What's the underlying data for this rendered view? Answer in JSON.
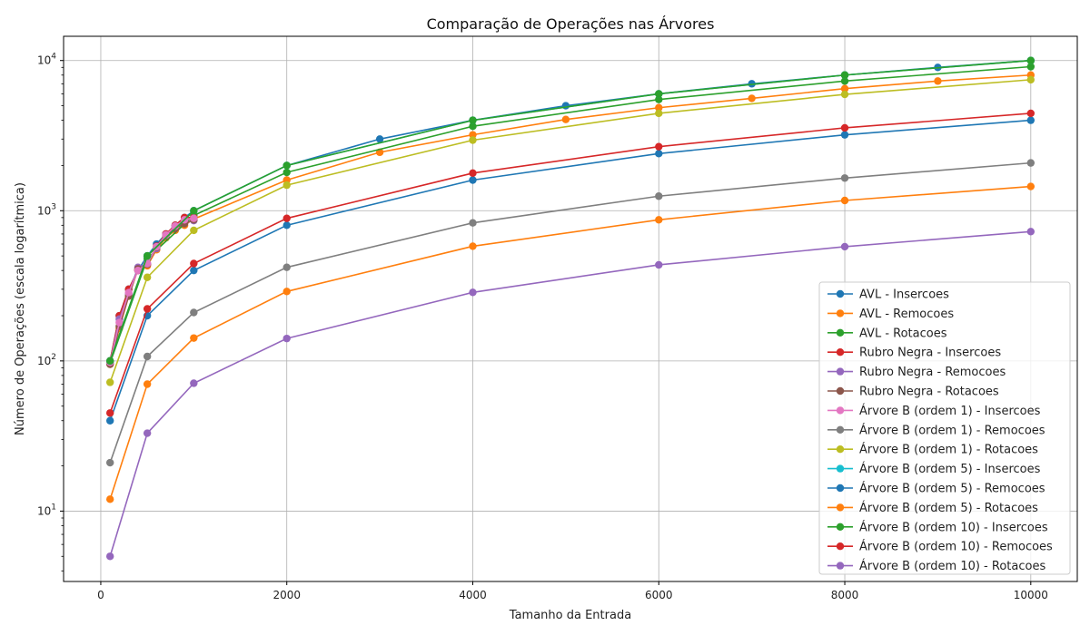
{
  "chart_data": {
    "type": "line",
    "title": "Comparação de Operações nas Árvores",
    "xlabel": "Tamanho da Entrada",
    "ylabel": "Número de Operações (escala logarítmica)",
    "yscale": "log",
    "xlim": [
      -400,
      10500
    ],
    "ylim": [
      3.4,
      14500
    ],
    "xticks": [
      0,
      2000,
      4000,
      6000,
      8000,
      10000
    ],
    "yticks": [
      10,
      100,
      1000,
      10000
    ],
    "ytick_labels": [
      {
        "base": "10",
        "exp": "1"
      },
      {
        "base": "10",
        "exp": "2"
      },
      {
        "base": "10",
        "exp": "3"
      },
      {
        "base": "10",
        "exp": "4"
      }
    ],
    "grid": true,
    "legend_position": "lower-right",
    "series": [
      {
        "name": "AVL - Insercoes",
        "color": "#1f77b4",
        "x": [
          100,
          200,
          300,
          400,
          500,
          600,
          700,
          800,
          900,
          1000,
          2000,
          3000,
          4000,
          5000,
          6000,
          7000,
          8000,
          9000,
          10000
        ],
        "y": [
          100,
          200,
          300,
          400,
          500,
          600,
          700,
          800,
          900,
          1000,
          2000,
          3000,
          4000,
          5000,
          6000,
          7000,
          8000,
          9000,
          10000
        ]
      },
      {
        "name": "AVL - Remocoes",
        "color": "#ff7f0e",
        "x": [
          100,
          200,
          300,
          400,
          500,
          600,
          700,
          800,
          900,
          1000,
          2000,
          3000,
          4000,
          5000,
          6000,
          7000,
          8000,
          9000,
          10000
        ],
        "y": [
          95,
          165,
          270,
          405,
          430,
          550,
          660,
          740,
          800,
          880,
          1600,
          2450,
          3200,
          4050,
          4850,
          5600,
          6500,
          7300,
          8000
        ]
      },
      {
        "name": "AVL - Rotacoes",
        "color": "#2ca02c",
        "x": [
          100,
          500,
          1000,
          2000,
          4000,
          6000,
          8000,
          10000
        ],
        "y": [
          97,
          480,
          930,
          1800,
          3650,
          5500,
          7300,
          9100
        ]
      },
      {
        "name": "Rubro Negra - Insercoes",
        "color": "#d62728",
        "x": [
          100,
          200,
          300,
          400,
          500,
          600,
          700,
          800,
          900,
          1000
        ],
        "y": [
          100,
          200,
          300,
          400,
          440,
          580,
          700,
          800,
          900,
          900
        ]
      },
      {
        "name": "Rubro Negra - Remocoes",
        "color": "#9467bd",
        "x": [
          100,
          200,
          300,
          400,
          500,
          600,
          700,
          800,
          900,
          1000
        ],
        "y": [
          96,
          190,
          280,
          420,
          445,
          560,
          690,
          780,
          830,
          860
        ]
      },
      {
        "name": "Rubro Negra - Rotacoes",
        "color": "#8c564b",
        "x": [
          100,
          200,
          300,
          400,
          500,
          600,
          700,
          800,
          900,
          1000
        ],
        "y": [
          95,
          170,
          270,
          410,
          440,
          570,
          680,
          760,
          820,
          870
        ]
      },
      {
        "name": "Árvore B (ordem 1) - Insercoes",
        "color": "#e377c2",
        "x": [
          100,
          200,
          300,
          400,
          500,
          600,
          700,
          800,
          900,
          1000
        ],
        "y": [
          98,
          180,
          285,
          400,
          445,
          575,
          690,
          790,
          870,
          890
        ]
      },
      {
        "name": "Árvore B (ordem 1) - Remocoes",
        "color": "#7f7f7f",
        "x": [
          100,
          500,
          1000,
          2000,
          4000,
          6000,
          8000,
          10000
        ],
        "y": [
          21,
          107,
          210,
          420,
          830,
          1250,
          1650,
          2080
        ]
      },
      {
        "name": "Árvore B (ordem 1) - Rotacoes",
        "color": "#bcbd22",
        "x": [
          100,
          500,
          1000,
          2000,
          4000,
          6000,
          8000,
          10000
        ],
        "y": [
          72,
          360,
          740,
          1480,
          2950,
          4450,
          5950,
          7450
        ]
      },
      {
        "name": "Árvore B (ordem 5) - Insercoes",
        "color": "#17becf",
        "x": [
          100,
          500,
          1000,
          2000,
          4000,
          6000,
          8000,
          10000
        ],
        "y": [
          100,
          500,
          1000,
          2000,
          4000,
          6000,
          8000,
          10000
        ]
      },
      {
        "name": "Árvore B (ordem 5) - Remocoes",
        "color": "#1f77b4",
        "x": [
          100,
          500,
          1000,
          2000,
          4000,
          6000,
          8000,
          10000
        ],
        "y": [
          40,
          200,
          400,
          800,
          1600,
          2400,
          3200,
          4000
        ]
      },
      {
        "name": "Árvore B (ordem 5) - Rotacoes",
        "color": "#ff7f0e",
        "x": [
          100,
          500,
          1000,
          2000,
          4000,
          6000,
          8000,
          10000
        ],
        "y": [
          12,
          70,
          142,
          290,
          580,
          870,
          1170,
          1450
        ]
      },
      {
        "name": "Árvore B (ordem 10) - Insercoes",
        "color": "#2ca02c",
        "x": [
          100,
          500,
          1000,
          2000,
          4000,
          6000,
          8000,
          10000
        ],
        "y": [
          100,
          500,
          1000,
          2000,
          4000,
          6000,
          8000,
          10000
        ]
      },
      {
        "name": "Árvore B (ordem 10) - Remocoes",
        "color": "#d62728",
        "x": [
          100,
          500,
          1000,
          2000,
          4000,
          6000,
          8000,
          10000
        ],
        "y": [
          45,
          222,
          445,
          890,
          1780,
          2670,
          3560,
          4450
        ]
      },
      {
        "name": "Árvore B (ordem 10) - Rotacoes",
        "color": "#9467bd",
        "x": [
          100,
          500,
          1000,
          2000,
          4000,
          6000,
          8000,
          10000
        ],
        "y": [
          5,
          33,
          71,
          141,
          286,
          436,
          576,
          726
        ]
      }
    ]
  }
}
